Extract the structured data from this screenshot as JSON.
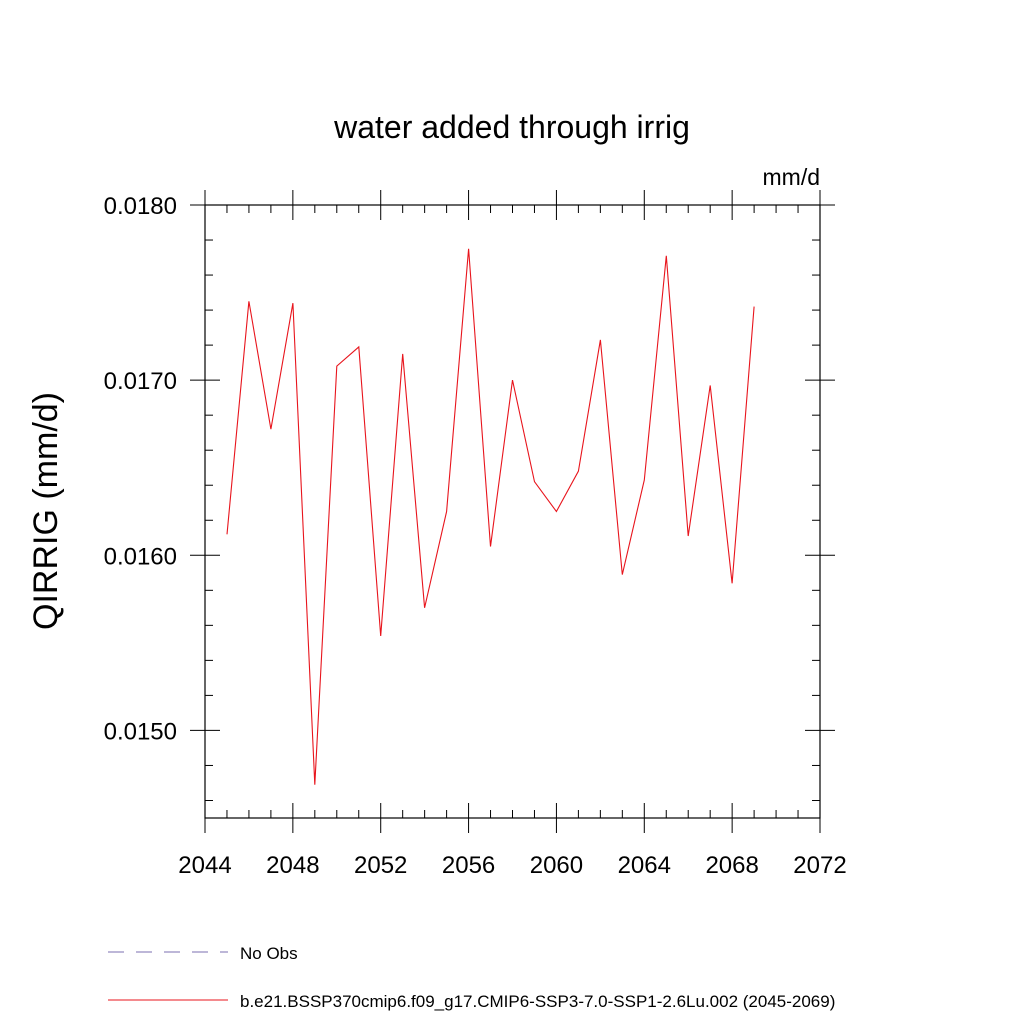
{
  "chart_data": {
    "type": "line",
    "title": "water added through irrig",
    "units_label": "mm/d",
    "ylabel": "QIRRIG  (mm/d)",
    "xlabel": "",
    "xlim": [
      2044,
      2072
    ],
    "ylim": [
      0.0145,
      0.018
    ],
    "x_ticks": [
      2044,
      2048,
      2052,
      2056,
      2060,
      2064,
      2068,
      2072
    ],
    "x_tick_labels": [
      "2044",
      "2048",
      "2052",
      "2056",
      "2060",
      "2064",
      "2068",
      "2072"
    ],
    "y_ticks": [
      0.015,
      0.016,
      0.017,
      0.018
    ],
    "y_tick_labels": [
      "0.0150",
      "0.0160",
      "0.0170",
      "0.0180"
    ],
    "grid": false,
    "legend_position": "bottom-left",
    "series": [
      {
        "name": "b.e21.BSSP370cmip6.f09_g17.CMIP6-SSP3-7.0-SSP1-2.6Lu.002 (2045-2069)",
        "color": "#e8141c",
        "style": "solid",
        "x": [
          2045,
          2046,
          2047,
          2048,
          2049,
          2050,
          2051,
          2052,
          2053,
          2054,
          2055,
          2056,
          2057,
          2058,
          2059,
          2060,
          2061,
          2062,
          2063,
          2064,
          2065,
          2066,
          2067,
          2068,
          2069
        ],
        "values": [
          0.01612,
          0.01745,
          0.01672,
          0.01744,
          0.01469,
          0.01708,
          0.01719,
          0.01554,
          0.01715,
          0.0157,
          0.01625,
          0.01775,
          0.01605,
          0.017,
          0.01642,
          0.01625,
          0.01648,
          0.01723,
          0.01589,
          0.01643,
          0.01771,
          0.01611,
          0.01697,
          0.01584,
          0.01742
        ]
      }
    ],
    "legend": [
      {
        "label": "No Obs",
        "color": "#7b6fb0",
        "style": "dashed"
      },
      {
        "label": "b.e21.BSSP370cmip6.f09_g17.CMIP6-SSP3-7.0-SSP1-2.6Lu.002 (2045-2069)",
        "color": "#e8141c",
        "style": "solid"
      }
    ]
  }
}
